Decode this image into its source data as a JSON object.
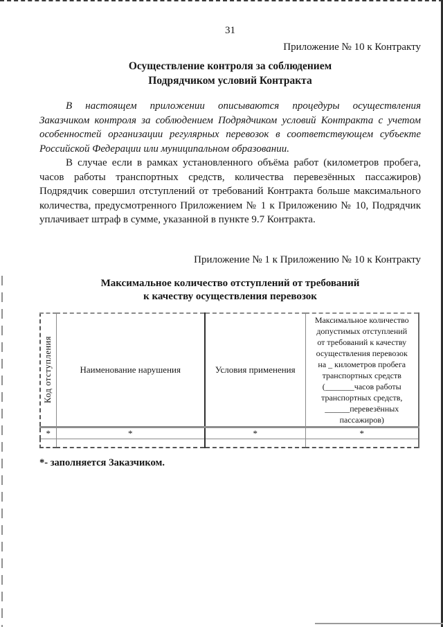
{
  "page": {
    "page_number": "31",
    "appendix_10_label": "Приложение № 10 к Контракту",
    "title_lines": [
      "Осуществление контроля за соблюдением",
      "Подрядчиком условий Контракта"
    ],
    "paragraph1_lines": [
      "В настоящем приложении описываются процедуры осуществления",
      "Заказчиком контроля за соблюдением Подрядчиком условий Контракта с учетом",
      "особенностей организации регулярных перевозок в соответствующем субъекте",
      "Российской Федерации или муниципальном образовании."
    ],
    "paragraph2_lines": [
      "В случае если в рамках установленного объёма работ (километров пробега,",
      "часов работы транспортных средств, количества перевезённых пассажиров)",
      "Подрядчик совершил отступлений от требований Контракта больше максимального",
      "количества, предусмотренного Приложением № 1 к Приложению № 10, Подрядчик",
      "уплачивает штраф в сумме, указанной в пункте 9.7 Контракта."
    ],
    "appendix_1_label": "Приложение № 1 к Приложению № 10 к Контракту",
    "table_title_lines": [
      "Максимальное количество отступлений от требований",
      "к качеству осуществления перевозок"
    ],
    "footnote": "*- заполняется Заказчиком."
  },
  "table": {
    "col_headers": {
      "code": "Код отступления",
      "violation": "Наименование нарушения",
      "conditions": "Условия применения",
      "max_count_lines": [
        "Максимальное количество",
        "допустимых отступлений",
        "от требований к качеству",
        "осуществления перевозок",
        "на _ километров пробега",
        "транспортных средств",
        "(_______часов работы",
        "транспортных средств,",
        "______перевезённых",
        "пассажиров)"
      ]
    },
    "rows": [
      {
        "code": "*",
        "violation": "*",
        "conditions": "*",
        "max_count": "*"
      },
      {
        "code": "",
        "violation": "",
        "conditions": "",
        "max_count": ""
      }
    ]
  }
}
